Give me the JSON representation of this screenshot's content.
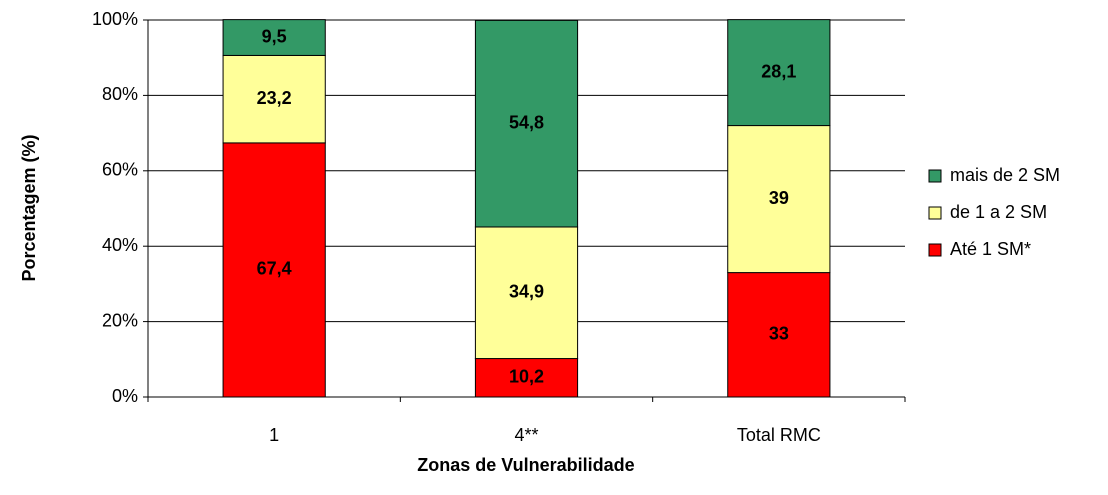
{
  "chart_data": {
    "type": "stacked_bar",
    "categories": [
      "1",
      "4**",
      "Total RMC"
    ],
    "series": [
      {
        "name": "Até 1 SM*",
        "color": "#ff0000",
        "values": [
          67.4,
          10.2,
          33
        ],
        "value_labels": [
          "67,4",
          "10,2",
          "33"
        ]
      },
      {
        "name": "de 1 a 2 SM",
        "color": "#ffff99",
        "values": [
          23.2,
          34.9,
          39
        ],
        "value_labels": [
          "23,2",
          "34,9",
          "39"
        ]
      },
      {
        "name": "mais de 2 SM",
        "color": "#339966",
        "values": [
          9.5,
          54.8,
          28.1
        ],
        "value_labels": [
          "9,5",
          "54,8",
          "28,1"
        ]
      }
    ],
    "xlabel": "Zonas de Vulnerabilidade",
    "ylabel": "Porcentagem (%)",
    "ylim": [
      0,
      100
    ],
    "yticks": [
      {
        "value": 0,
        "label": "0%"
      },
      {
        "value": 20,
        "label": "20%"
      },
      {
        "value": 40,
        "label": "40%"
      },
      {
        "value": 60,
        "label": "60%"
      },
      {
        "value": 80,
        "label": "80%"
      },
      {
        "value": 100,
        "label": "100%"
      }
    ],
    "grid": true,
    "legend": "right"
  }
}
